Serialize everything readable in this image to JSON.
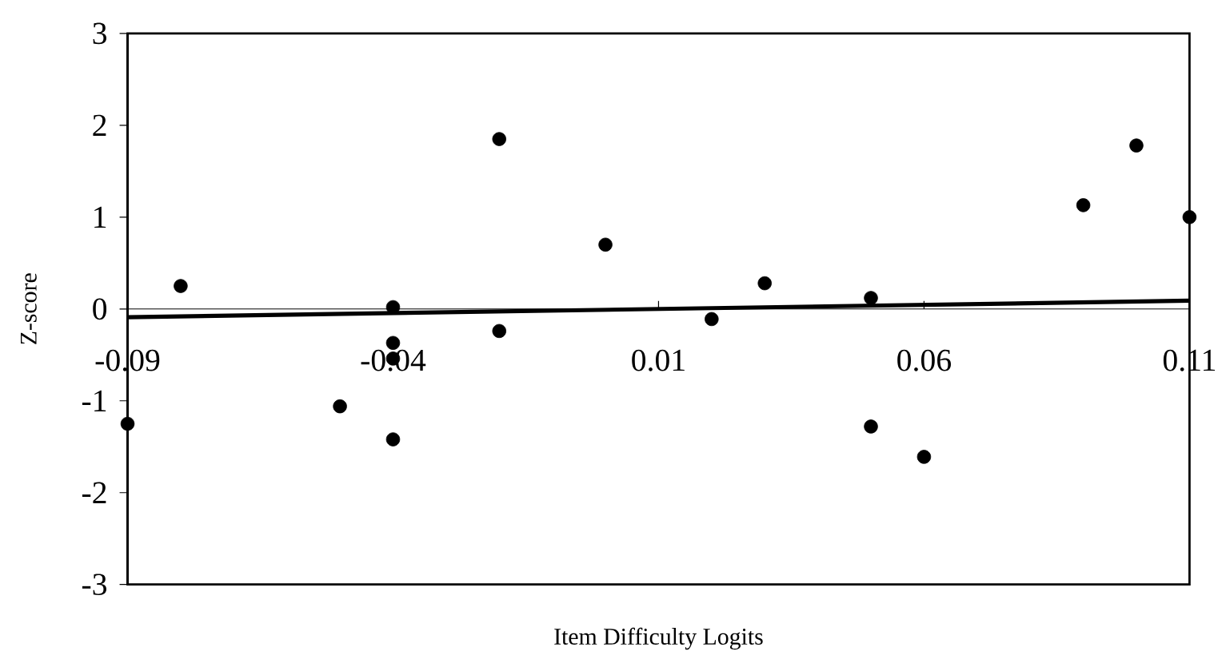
{
  "chart_data": {
    "type": "scatter",
    "xlabel": "Item Difficulty Logits",
    "ylabel": "Z-score",
    "xlim": [
      -0.09,
      0.11
    ],
    "ylim": [
      -3,
      3
    ],
    "xticks": [
      -0.09,
      -0.04,
      0.01,
      0.06,
      0.11
    ],
    "yticks": [
      -3,
      -2,
      -1,
      0,
      1,
      2,
      3
    ],
    "grid": false,
    "legend": false,
    "marker": "circle",
    "series": [
      {
        "color": "#000000",
        "x": [
          -0.09,
          -0.08,
          -0.05,
          -0.04,
          -0.04,
          -0.04,
          -0.04,
          -0.02,
          -0.02,
          0.0,
          0.02,
          0.03,
          0.05,
          0.05,
          0.06,
          0.09,
          0.1,
          0.11
        ],
        "values": [
          -1.25,
          0.25,
          -1.06,
          0.02,
          -0.37,
          -0.54,
          -1.42,
          1.85,
          -0.24,
          0.7,
          -0.11,
          0.28,
          0.12,
          -1.28,
          -1.61,
          1.13,
          1.78,
          1.0
        ]
      },
      {
        "type": "line",
        "color": "#000000",
        "marker": "none",
        "line_style": "solid",
        "x": [
          -0.09,
          0.11
        ],
        "values": [
          -0.09,
          0.09
        ]
      }
    ]
  }
}
